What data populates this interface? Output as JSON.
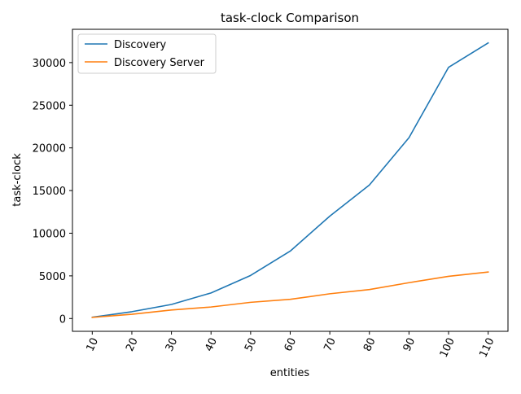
{
  "chart_data": {
    "type": "line",
    "title": "task-clock Comparison",
    "xlabel": "entities",
    "ylabel": "task-clock",
    "x": [
      10,
      20,
      30,
      40,
      50,
      60,
      70,
      80,
      90,
      100,
      110
    ],
    "x_tick_labels": [
      "10",
      "20",
      "30",
      "40",
      "50",
      "60",
      "70",
      "80",
      "90",
      "100",
      "110"
    ],
    "x_tick_rotation": 65,
    "y_ticks": [
      0,
      5000,
      10000,
      15000,
      20000,
      25000,
      30000
    ],
    "y_tick_labels": [
      "0",
      "5000",
      "10000",
      "15000",
      "20000",
      "25000",
      "30000"
    ],
    "xlim": [
      5,
      115
    ],
    "ylim": [
      -1500,
      33900
    ],
    "grid": false,
    "legend_position": "upper-left",
    "series": [
      {
        "name": "Discovery",
        "color": "#1f77b4",
        "values": [
          150,
          800,
          1650,
          3000,
          5050,
          7900,
          12000,
          15650,
          21200,
          29450,
          32300
        ]
      },
      {
        "name": "Discovery Server",
        "color": "#ff7f0e",
        "values": [
          130,
          500,
          1000,
          1350,
          1900,
          2250,
          2900,
          3400,
          4200,
          4950,
          5450
        ]
      }
    ]
  }
}
